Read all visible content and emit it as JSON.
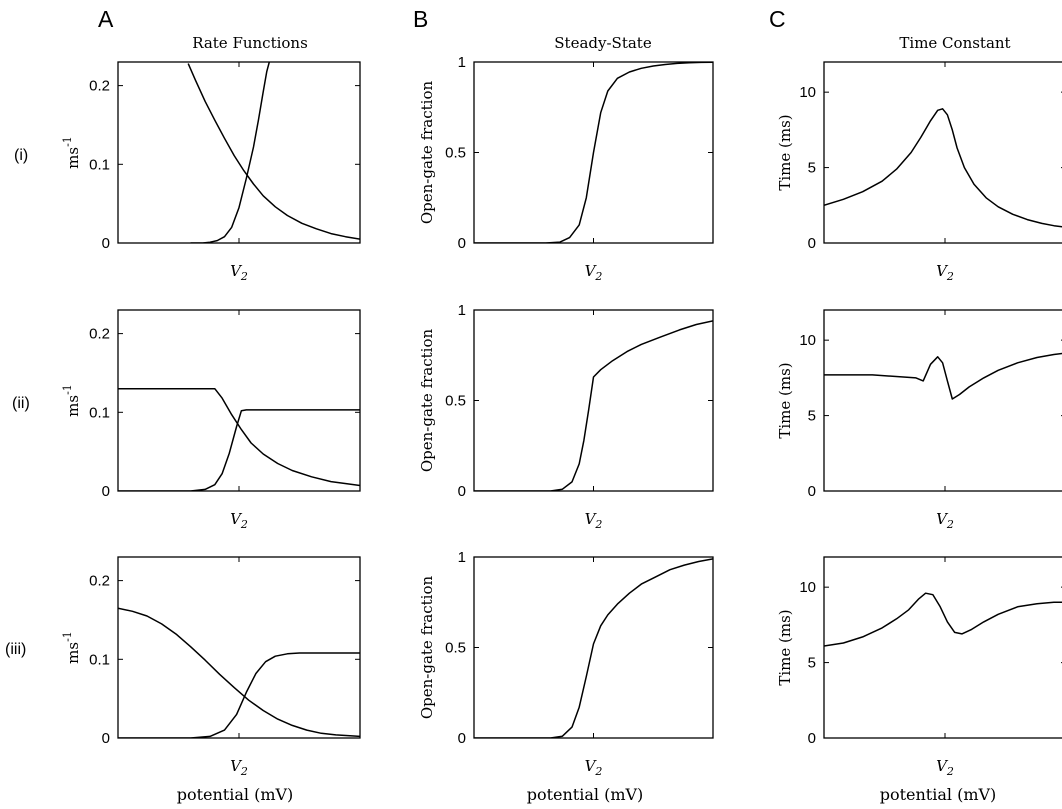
{
  "columns": [
    {
      "letter": "A",
      "title": "Rate Functions"
    },
    {
      "letter": "B",
      "title": "Steady-State"
    },
    {
      "letter": "C",
      "title": "Time Constant"
    }
  ],
  "rows": [
    "(i)",
    "(ii)",
    "(iii)"
  ],
  "x_axis_label": "potential (mV)",
  "chart_data": [
    {
      "id": "A-i",
      "type": "line",
      "ylabel": "ms",
      "ylabel_sup": "-1",
      "ylim": [
        0,
        0.23
      ],
      "yticks": [
        0,
        0.1,
        0.2
      ],
      "ytick_labels": [
        "0",
        "0.1",
        "0.2"
      ],
      "xtick_label": "V2",
      "xtick_pos": 0.5,
      "series": [
        {
          "x": [
            0.29,
            0.32,
            0.36,
            0.4,
            0.44,
            0.48,
            0.52,
            0.56,
            0.6,
            0.65,
            0.7,
            0.76,
            0.82,
            0.88,
            0.94,
            1.0
          ],
          "values": [
            0.228,
            0.207,
            0.18,
            0.156,
            0.133,
            0.111,
            0.092,
            0.075,
            0.06,
            0.046,
            0.035,
            0.025,
            0.018,
            0.012,
            0.008,
            0.005
          ]
        },
        {
          "x": [
            0.3,
            0.35,
            0.38,
            0.41,
            0.44,
            0.47,
            0.5,
            0.53,
            0.56,
            0.58,
            0.6,
            0.615,
            0.625
          ],
          "values": [
            0,
            0,
            0.001,
            0.003,
            0.008,
            0.02,
            0.045,
            0.082,
            0.122,
            0.156,
            0.192,
            0.218,
            0.23
          ]
        }
      ]
    },
    {
      "id": "B-i",
      "type": "line",
      "ylabel": "Open-gate fraction",
      "ylim": [
        0,
        1
      ],
      "yticks": [
        0,
        0.5,
        1
      ],
      "ytick_labels": [
        "0",
        "0.5",
        "1"
      ],
      "xtick_label": "V2",
      "xtick_pos": 0.5,
      "series": [
        {
          "x": [
            0,
            0.3,
            0.36,
            0.4,
            0.44,
            0.47,
            0.5,
            0.53,
            0.56,
            0.6,
            0.65,
            0.7,
            0.75,
            0.8,
            0.85,
            0.9,
            0.95,
            1.0
          ],
          "values": [
            0,
            0,
            0.005,
            0.03,
            0.1,
            0.25,
            0.5,
            0.72,
            0.84,
            0.91,
            0.945,
            0.965,
            0.978,
            0.986,
            0.992,
            0.996,
            0.998,
            0.999
          ]
        }
      ]
    },
    {
      "id": "C-i",
      "type": "line",
      "ylabel": "Time (ms)",
      "ylim": [
        0,
        12
      ],
      "yticks": [
        0,
        5,
        10
      ],
      "ytick_labels": [
        "0",
        "5",
        "10"
      ],
      "xtick_label": "V2",
      "xtick_pos": 0.5,
      "series": [
        {
          "x": [
            0,
            0.08,
            0.16,
            0.24,
            0.3,
            0.36,
            0.4,
            0.44,
            0.47,
            0.49,
            0.51,
            0.53,
            0.55,
            0.58,
            0.62,
            0.67,
            0.72,
            0.78,
            0.84,
            0.9,
            0.95,
            1.0
          ],
          "values": [
            2.5,
            2.9,
            3.4,
            4.1,
            4.9,
            6.0,
            7.0,
            8.1,
            8.8,
            8.9,
            8.5,
            7.5,
            6.3,
            5.0,
            3.9,
            3.0,
            2.4,
            1.9,
            1.55,
            1.3,
            1.15,
            1.05
          ]
        }
      ]
    },
    {
      "id": "A-ii",
      "type": "line",
      "ylabel": "ms",
      "ylabel_sup": "-1",
      "ylim": [
        0,
        0.23
      ],
      "yticks": [
        0,
        0.1,
        0.2
      ],
      "ytick_labels": [
        "0",
        "0.1",
        "0.2"
      ],
      "xtick_label": "V2",
      "xtick_pos": 0.5,
      "series": [
        {
          "x": [
            0,
            0.4,
            0.43,
            0.47,
            0.51,
            0.55,
            0.6,
            0.66,
            0.72,
            0.8,
            0.88,
            0.95,
            1.0
          ],
          "values": [
            0.13,
            0.13,
            0.118,
            0.097,
            0.078,
            0.061,
            0.047,
            0.035,
            0.026,
            0.018,
            0.012,
            0.009,
            0.007
          ]
        },
        {
          "x": [
            0,
            0.3,
            0.36,
            0.4,
            0.43,
            0.46,
            0.49,
            0.51,
            0.53,
            1.0
          ],
          "values": [
            0,
            0,
            0.002,
            0.008,
            0.022,
            0.048,
            0.082,
            0.102,
            0.103,
            0.103
          ]
        }
      ]
    },
    {
      "id": "B-ii",
      "type": "line",
      "ylabel": "Open-gate fraction",
      "ylim": [
        0,
        1
      ],
      "yticks": [
        0,
        0.5,
        1
      ],
      "ytick_labels": [
        "0",
        "0.5",
        "1"
      ],
      "xtick_label": "V2",
      "xtick_pos": 0.5,
      "series": [
        {
          "x": [
            0,
            0.32,
            0.37,
            0.41,
            0.44,
            0.46,
            0.48,
            0.5,
            0.53,
            0.58,
            0.64,
            0.7,
            0.78,
            0.86,
            0.93,
            1.0
          ],
          "values": [
            0,
            0,
            0.01,
            0.05,
            0.15,
            0.28,
            0.45,
            0.63,
            0.67,
            0.72,
            0.77,
            0.81,
            0.85,
            0.89,
            0.92,
            0.94
          ]
        }
      ]
    },
    {
      "id": "C-ii",
      "type": "line",
      "ylabel": "Time (ms)",
      "ylim": [
        0,
        12
      ],
      "yticks": [
        0,
        5,
        10
      ],
      "ytick_labels": [
        "0",
        "5",
        "10"
      ],
      "xtick_label": "V2",
      "xtick_pos": 0.5,
      "series": [
        {
          "x": [
            0,
            0.2,
            0.38,
            0.41,
            0.44,
            0.47,
            0.49,
            0.51,
            0.53,
            0.56,
            0.6,
            0.66,
            0.72,
            0.8,
            0.88,
            0.95,
            1.0
          ],
          "values": [
            7.7,
            7.7,
            7.5,
            7.3,
            8.4,
            8.9,
            8.5,
            7.3,
            6.1,
            6.4,
            6.9,
            7.5,
            8.0,
            8.5,
            8.85,
            9.05,
            9.15
          ]
        }
      ]
    },
    {
      "id": "A-iii",
      "type": "line",
      "ylabel": "ms",
      "ylabel_sup": "-1",
      "ylim": [
        0,
        0.23
      ],
      "yticks": [
        0,
        0.1,
        0.2
      ],
      "ytick_labels": [
        "0",
        "0.1",
        "0.2"
      ],
      "xtick_label": "V2",
      "xtick_pos": 0.5,
      "series": [
        {
          "x": [
            0,
            0.06,
            0.12,
            0.18,
            0.24,
            0.3,
            0.36,
            0.42,
            0.48,
            0.54,
            0.6,
            0.66,
            0.72,
            0.78,
            0.84,
            0.9,
            0.95,
            1.0
          ],
          "values": [
            0.165,
            0.161,
            0.155,
            0.145,
            0.132,
            0.116,
            0.099,
            0.081,
            0.064,
            0.048,
            0.035,
            0.024,
            0.016,
            0.01,
            0.006,
            0.004,
            0.003,
            0.002
          ]
        },
        {
          "x": [
            0,
            0.3,
            0.38,
            0.44,
            0.49,
            0.53,
            0.57,
            0.61,
            0.65,
            0.7,
            0.75,
            0.8,
            1.0
          ],
          "values": [
            0,
            0,
            0.002,
            0.01,
            0.03,
            0.058,
            0.082,
            0.097,
            0.104,
            0.107,
            0.108,
            0.108,
            0.108
          ]
        }
      ]
    },
    {
      "id": "B-iii",
      "type": "line",
      "ylabel": "Open-gate fraction",
      "ylim": [
        0,
        1
      ],
      "yticks": [
        0,
        0.5,
        1
      ],
      "ytick_labels": [
        "0",
        "0.5",
        "1"
      ],
      "xtick_label": "V2",
      "xtick_pos": 0.5,
      "series": [
        {
          "x": [
            0,
            0.32,
            0.37,
            0.41,
            0.44,
            0.47,
            0.5,
            0.53,
            0.56,
            0.6,
            0.65,
            0.7,
            0.76,
            0.82,
            0.88,
            0.94,
            1.0
          ],
          "values": [
            0,
            0,
            0.01,
            0.06,
            0.17,
            0.34,
            0.52,
            0.62,
            0.68,
            0.74,
            0.8,
            0.85,
            0.89,
            0.93,
            0.955,
            0.975,
            0.99
          ]
        }
      ]
    },
    {
      "id": "C-iii",
      "type": "line",
      "ylabel": "Time (ms)",
      "ylim": [
        0,
        12
      ],
      "yticks": [
        0,
        5,
        10
      ],
      "ytick_labels": [
        "0",
        "5",
        "10"
      ],
      "xtick_label": "V2",
      "xtick_pos": 0.5,
      "series": [
        {
          "x": [
            0,
            0.08,
            0.16,
            0.24,
            0.3,
            0.35,
            0.39,
            0.42,
            0.45,
            0.48,
            0.51,
            0.54,
            0.57,
            0.61,
            0.66,
            0.72,
            0.8,
            0.88,
            0.95,
            1.0
          ],
          "values": [
            6.1,
            6.3,
            6.7,
            7.3,
            7.9,
            8.5,
            9.2,
            9.6,
            9.5,
            8.7,
            7.7,
            7.0,
            6.9,
            7.2,
            7.7,
            8.2,
            8.7,
            8.9,
            9.0,
            9.0
          ]
        }
      ]
    }
  ]
}
